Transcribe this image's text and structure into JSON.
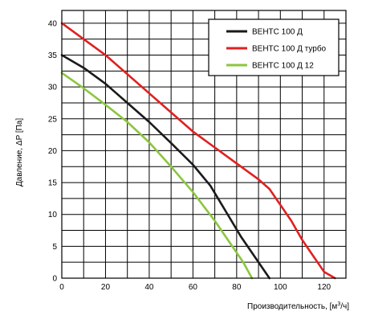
{
  "chart_data": {
    "type": "line",
    "xlabel": "Производительность, [м",
    "xlabel_sup": "3",
    "xlabel_tail": "/ч]",
    "ylabel": "Давление, ΔP [Па]",
    "xlim": [
      0,
      130
    ],
    "ylim": [
      0,
      42
    ],
    "x_ticks": [
      0,
      20,
      40,
      60,
      80,
      100,
      120
    ],
    "y_ticks": [
      0,
      5,
      10,
      15,
      20,
      25,
      30,
      35,
      40
    ],
    "x_grid_step": 10,
    "y_grid_step": 2.5,
    "grid": true,
    "legend_position": "top-right",
    "series": [
      {
        "name": "ВЕНТС 100 Д",
        "color": "#1a1a1a",
        "points": [
          [
            0,
            35
          ],
          [
            10,
            33
          ],
          [
            20,
            30.5
          ],
          [
            30,
            27.5
          ],
          [
            40,
            24.5
          ],
          [
            50,
            21.2
          ],
          [
            60,
            17.8
          ],
          [
            68,
            14.5
          ],
          [
            75,
            10.5
          ],
          [
            82,
            6.5
          ],
          [
            88,
            3.5
          ],
          [
            92,
            1.5
          ],
          [
            95,
            0
          ]
        ]
      },
      {
        "name": "ВЕНТС 100 Д турбо",
        "color": "#e02020",
        "points": [
          [
            0,
            40
          ],
          [
            20,
            35
          ],
          [
            40,
            29
          ],
          [
            60,
            23
          ],
          [
            80,
            18
          ],
          [
            90,
            15.5
          ],
          [
            95,
            14
          ],
          [
            100,
            11.5
          ],
          [
            105,
            9
          ],
          [
            110,
            6
          ],
          [
            115,
            3.5
          ],
          [
            120,
            1
          ],
          [
            125,
            0
          ]
        ]
      },
      {
        "name": "ВЕНТС 100 Д 12",
        "color": "#8cc63e",
        "points": [
          [
            0,
            32.2
          ],
          [
            10,
            29.8
          ],
          [
            20,
            27.2
          ],
          [
            30,
            24.5
          ],
          [
            40,
            21.3
          ],
          [
            50,
            17.5
          ],
          [
            60,
            13.5
          ],
          [
            70,
            9
          ],
          [
            77,
            5.5
          ],
          [
            83,
            2.5
          ],
          [
            87,
            0
          ]
        ]
      }
    ]
  }
}
